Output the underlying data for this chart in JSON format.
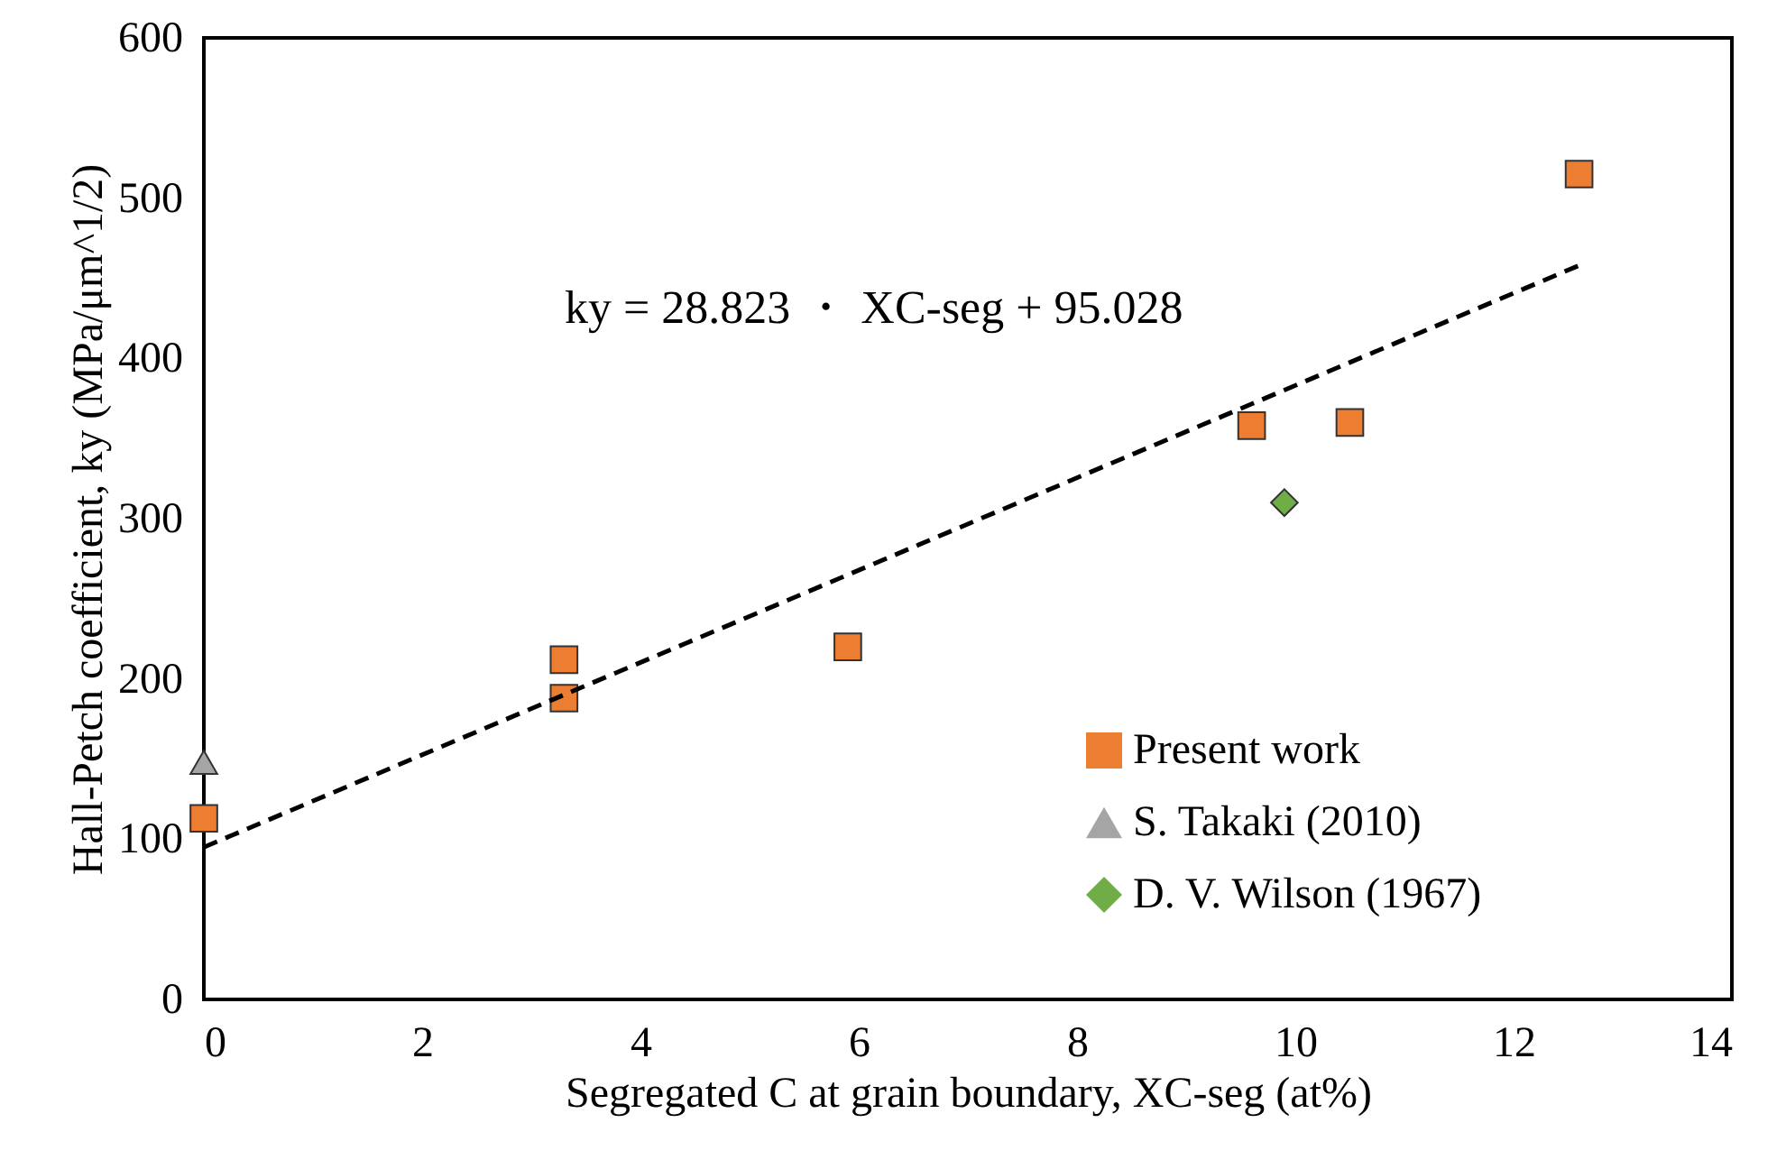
{
  "chart_data": {
    "type": "scatter",
    "xlabel": "Segregated C at grain boundary, XC-seg (at%)",
    "ylabel": "Hall-Petch coefficient, ky (MPa/μm^1/2)",
    "xlim": [
      0,
      14
    ],
    "xticks": [
      0,
      2,
      4,
      6,
      8,
      10,
      12,
      14
    ],
    "ylim": [
      0,
      600
    ],
    "yticks": [
      0,
      100,
      200,
      300,
      400,
      500,
      600
    ],
    "grid": false,
    "legend": "bottom right",
    "annotations": [
      "ky = 28.823 ・ XC-seg + 95.028"
    ],
    "series": [
      {
        "name": "Present work",
        "marker": "square",
        "color": "#ed7d31",
        "x": [
          0,
          3.3,
          3.3,
          5.9,
          9.6,
          10.5,
          12.6
        ],
        "values": [
          113,
          212,
          188,
          220,
          358,
          360,
          515
        ]
      },
      {
        "name": "S. Takaki (2010)",
        "marker": "triangle",
        "color": "#a5a5a5",
        "x": [
          0
        ],
        "values": [
          148
        ]
      },
      {
        "name": "D. V. Wilson (1967)",
        "marker": "diamond",
        "color": "#70ad47",
        "x": [
          9.9
        ],
        "values": [
          310
        ]
      },
      {
        "type": "line",
        "line_style": "dashed",
        "color": "#000000",
        "marker": "none",
        "x": [
          0,
          12.6
        ],
        "values": [
          95,
          458
        ]
      }
    ]
  }
}
